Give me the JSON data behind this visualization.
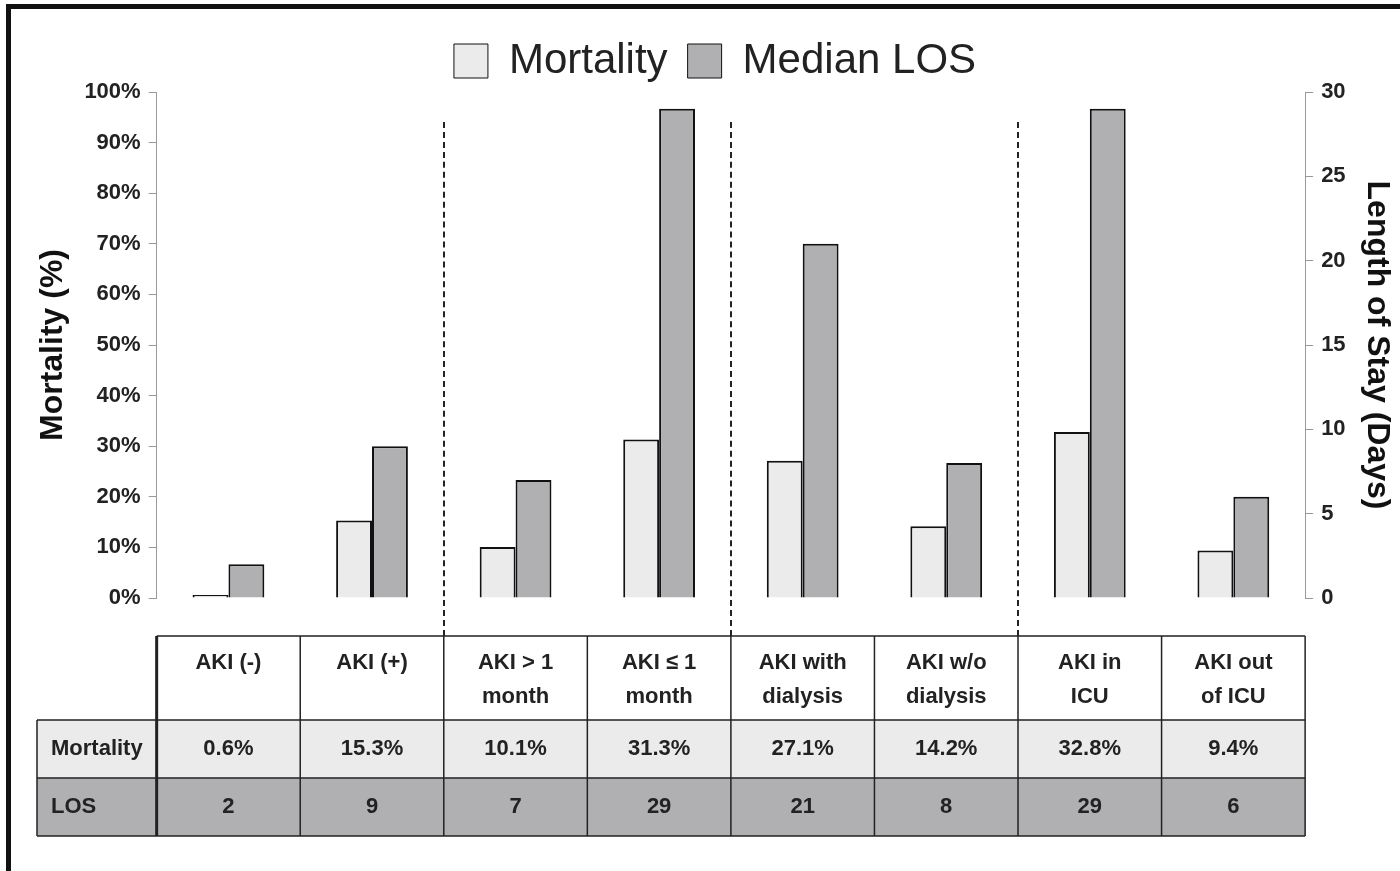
{
  "chart_data": {
    "type": "bar",
    "categories": [
      "AKI (-)",
      "AKI (+)",
      "AKI > 1 month",
      "AKI ≤ 1 month",
      "AKI with dialysis",
      "AKI w/o dialysis",
      "AKI in ICU",
      "AKI out of ICU"
    ],
    "ylabel": "Mortality (%)",
    "y2label": "Length of Stay (Days)",
    "ylim": [
      0,
      100
    ],
    "yticks": [
      {
        "value": 0,
        "label": "0%"
      },
      {
        "value": 10,
        "label": "10%"
      },
      {
        "value": 20,
        "label": "20%"
      },
      {
        "value": 30,
        "label": "30%"
      },
      {
        "value": 40,
        "label": "40%"
      },
      {
        "value": 50,
        "label": "50%"
      },
      {
        "value": 60,
        "label": "60%"
      },
      {
        "value": 70,
        "label": "70%"
      },
      {
        "value": 80,
        "label": "80%"
      },
      {
        "value": 90,
        "label": "90%"
      },
      {
        "value": 100,
        "label": "100%"
      }
    ],
    "y2lim": [
      0,
      30
    ],
    "y2ticks": [
      0,
      5,
      10,
      15,
      20,
      25,
      30
    ],
    "grid": false,
    "legend": "top",
    "series": [
      {
        "name": "Mortality",
        "color": "#ebebeb",
        "values": [
          0.6,
          15.3,
          10.1,
          31.3,
          27.1,
          14.2,
          32.8,
          9.4
        ],
        "value_labels": [
          "0.6%",
          "15.3%",
          "10.1%",
          "31.3%",
          "27.1%",
          "14.2%",
          "32.8%",
          "9.4%"
        ]
      },
      {
        "name": "Median LOS",
        "color": "#b0b0b3",
        "axis": "y2",
        "values": [
          2,
          9,
          7,
          29,
          21,
          8,
          29,
          6
        ],
        "value_labels": [
          "2",
          "9",
          "7",
          "29",
          "21",
          "8",
          "29",
          "6"
        ]
      }
    ],
    "annotations": [
      "Mortality",
      "LOS"
    ]
  }
}
